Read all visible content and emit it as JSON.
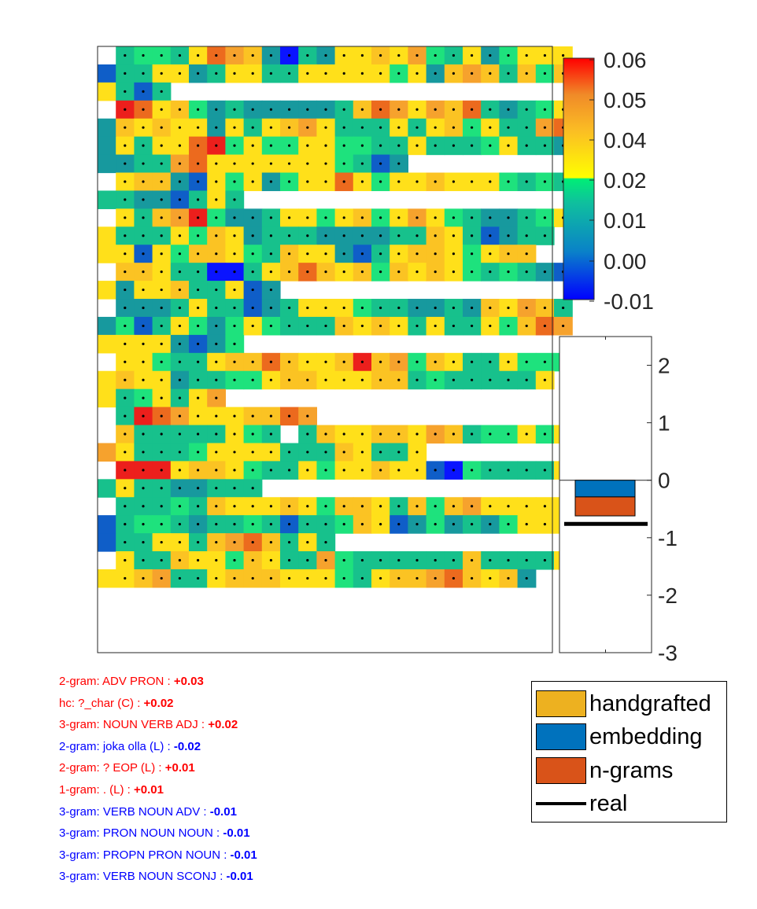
{
  "chart_data": [
    {
      "type": "heatmap",
      "colorbar": {
        "ticks": [
          "0.06",
          "0.05",
          "0.04",
          "0.02",
          "0.01",
          "0.00",
          "-0.01"
        ]
      },
      "columns": 25,
      "rows": [
        "- 3 4 4 3 5 8 7 6 2 0 3 2 5 5 6 5 7 4 3 5 2 4 5 5 5",
        "1 3 3 5 5 2 3 5 5 3 3 5 5 5 5 5 4 5 2 6 7 6 3 6 4 6",
        "5 3 1 3",
        "- 9 8 5 6 4 2 3 2 2 2 2 2 3 6 8 7 5 7 6 8 3 2 3 4 5",
        "2 6 5 6 5 5 2 5 3 5 6 7 5 3 3 3 5 3 5 6 4 5 3 3 7 8",
        "2 5 3 5 5 8 9 4 5 4 4 5 5 4 4 3 3 5 3 3 3 4 5 3 3 2",
        "2 2 3 3 7 8 5 5 5 5 5 5 5 4 3 1 2",
        "- 5 6 6 2 1 5 4 5 2 4 5 5 8 5 4 5 5 6 5 5 5 4 3 4 3",
        "3 3 2 2 1 3 5 3",
        "- 5 3 6 7 9 4 2 2 3 5 5 4 5 6 4 5 7 5 4 3 2 2 3 4 5",
        "5 3 3 3 5 4 6 5 2 3 3 3 2 2 2 2 3 3 6 5 3 1 2 3 3",
        "5 5 1 5 4 6 6 5 4 3 6 5 5 2 1 3 5 6 6 5 4 5 6 6",
        "- 6 6 5 3 3 0 0 3 5 6 8 6 5 6 4 6 5 6 5 4 3 4 3 2 1",
        "5 2 5 5 6 3 3 5 1 2",
        "- 2 2 2 3 5 3 3 1 2 3 5 5 5 4 3 3 2 2 3 2 6 5 7 6 3",
        "2 4 1 3 5 4 2 4 5 4 3 3 3 6 5 6 5 3 5 3 3 5 4 6 8 7",
        "5 5 5 5 2 1 2 4",
        "- 5 5 4 3 3 5 6 6 8 6 5 5 6 9 6 7 4 6 5 3 3 5 4 4 4",
        "5 6 5 5 2 3 3 4 4 5 6 6 5 5 5 6 6 3 4 3 3 3 3 3 5",
        "5 3 4 5 3 5 7",
        "- 3 9 8 7 5 5 5 6 6 8 7",
        "- 6 3 3 3 3 3 5 4 3 - 3 6 5 5 6 6 5 7 6 3 4 4 5 4 5",
        "7 5 3 3 3 4 5 5 5 5 3 3 3 6 5 3 3 5",
        "- 9 9 9 5 6 6 5 4 3 3 5 4 5 5 6 5 5 1 0 4 3 3 3 3 5",
        "3 5 3 3 2 2 3 3 3",
        "- 3 3 3 4 3 6 5 5 5 6 5 4 6 6 5 3 6 4 6 7 5 5 5 5 5",
        "1 3 4 4 3 2 3 3 4 3 1 3 3 4 6 5 1 2 4 2 3 2 4 5 5 5",
        "1 3 3 5 5 3 6 7 8 6 3 5 3",
        "- 5 3 3 6 5 5 4 6 5 3 3 7 4 3 3 3 3 3 3 6 3 3 3 3 5",
        "5 5 6 7 3 3 5 6 6 6 5 5 5 4 3 5 6 6 7 8 6 5 6 2"
      ]
    },
    {
      "type": "bar",
      "yticks": [
        "2",
        "1",
        "0",
        "-1",
        "-2",
        "-3"
      ],
      "ylim": [
        -3,
        2.5
      ],
      "stack": [
        {
          "name": "embedding",
          "value": -0.29,
          "color": "#0072BD"
        },
        {
          "name": "n-grams",
          "value": -0.33,
          "color": "#D95319"
        }
      ],
      "real": -0.76,
      "legend": [
        {
          "label": "handgrafted",
          "color": "#EDB120"
        },
        {
          "label": "embedding",
          "color": "#0072BD"
        },
        {
          "label": "n-grams",
          "color": "#D95319"
        },
        {
          "label": "real",
          "color": "#000000"
        }
      ]
    }
  ],
  "features": [
    {
      "label": "2-gram: ADV PRON : ",
      "value": "+0.03",
      "color": "#ff0000"
    },
    {
      "label": "hc: ?_char (C) : ",
      "value": "+0.02",
      "color": "#ff0000"
    },
    {
      "label": "3-gram: NOUN VERB ADJ : ",
      "value": "+0.02",
      "color": "#ff0000"
    },
    {
      "label": "2-gram: joka olla (L) : ",
      "value": "-0.02",
      "color": "#0000ff"
    },
    {
      "label": "2-gram: ? EOP (L) : ",
      "value": "+0.01",
      "color": "#ff0000"
    },
    {
      "label": "1-gram: . (L) : ",
      "value": "+0.01",
      "color": "#ff0000"
    },
    {
      "label": "3-gram: VERB NOUN ADV : ",
      "value": "-0.01",
      "color": "#0000ff"
    },
    {
      "label": "3-gram: PRON NOUN NOUN : ",
      "value": "-0.01",
      "color": "#0000ff"
    },
    {
      "label": "3-gram: PROPN PRON NOUN : ",
      "value": "-0.01",
      "color": "#0000ff"
    },
    {
      "label": "3-gram: VERB NOUN SCONJ : ",
      "value": "-0.01",
      "color": "#0000ff"
    }
  ]
}
